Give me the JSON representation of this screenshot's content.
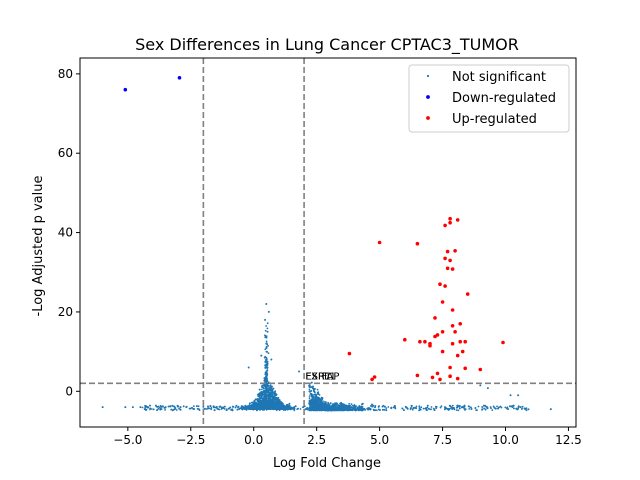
{
  "chart_data": {
    "type": "scatter",
    "title": "Sex Differences in Lung Cancer CPTAC3_TUMOR",
    "xlabel": "Log Fold Change",
    "ylabel": "-Log Adjusted p value",
    "xlim": [
      -6.9,
      12.8
    ],
    "ylim": [
      -9,
      84
    ],
    "x_ticks": [
      -5.0,
      -2.5,
      0.0,
      2.5,
      5.0,
      7.5,
      10.0,
      12.5
    ],
    "x_tick_labels": [
      "−5.0",
      "−2.5",
      "0.0",
      "2.5",
      "5.0",
      "7.5",
      "10.0",
      "12.5"
    ],
    "y_ticks": [
      0,
      20,
      40,
      60,
      80
    ],
    "y_tick_labels": [
      "0",
      "20",
      "40",
      "60",
      "80"
    ],
    "grid": false,
    "legend_position": "top-right",
    "threshold_lines": {
      "vertical": [
        -2.0,
        2.0
      ],
      "horizontal": [
        2.0
      ]
    },
    "annotations": [
      {
        "text": "FXR1",
        "x": 2.05,
        "y": 3.0
      },
      {
        "text": "ESPL1",
        "x": 2.05,
        "y": 3.0
      },
      {
        "text": "FAP",
        "x": 2.7,
        "y": 3.0
      }
    ],
    "series": [
      {
        "name": "Not significant",
        "color": "#1f77b4",
        "sample_points": [
          [
            -6.0,
            -4.0
          ],
          [
            -5.1,
            -4.0
          ],
          [
            -4.8,
            -4.0
          ],
          [
            -4.5,
            -4.0
          ],
          [
            -4.2,
            -4.0
          ],
          [
            -3.5,
            -4.0
          ],
          [
            -3.0,
            -3.8
          ],
          [
            0.5,
            22.0
          ],
          [
            0.6,
            20.0
          ],
          [
            0.45,
            18.0
          ],
          [
            0.55,
            15.0
          ],
          [
            0.5,
            12.0
          ],
          [
            0.3,
            9.0
          ],
          [
            0.7,
            8.0
          ],
          [
            -0.2,
            6.0
          ],
          [
            1.8,
            5.0
          ],
          [
            9.0,
            1.5
          ],
          [
            9.3,
            0.8
          ],
          [
            10.2,
            -1.0
          ],
          [
            10.5,
            -1.0
          ],
          [
            10.6,
            -4.0
          ],
          [
            10.1,
            -4.5
          ],
          [
            11.8,
            -4.5
          ]
        ]
      },
      {
        "name": "Down-regulated",
        "color": "#0000ff",
        "points": [
          [
            -5.1,
            76.0
          ],
          [
            -2.95,
            79.0
          ]
        ]
      },
      {
        "name": "Up-regulated",
        "color": "#ff0000",
        "points": [
          [
            5.0,
            37.5
          ],
          [
            6.5,
            37.2
          ],
          [
            7.8,
            43.5
          ],
          [
            8.1,
            43.2
          ],
          [
            7.6,
            41.8
          ],
          [
            7.8,
            42.5
          ],
          [
            7.7,
            35.2
          ],
          [
            8.0,
            35.4
          ],
          [
            7.6,
            33.5
          ],
          [
            7.8,
            33.0
          ],
          [
            7.7,
            31.0
          ],
          [
            7.9,
            30.8
          ],
          [
            7.4,
            27.0
          ],
          [
            7.6,
            26.5
          ],
          [
            8.5,
            24.5
          ],
          [
            7.5,
            22.5
          ],
          [
            7.9,
            20.5
          ],
          [
            8.2,
            17.0
          ],
          [
            7.9,
            16.5
          ],
          [
            8.0,
            15.0
          ],
          [
            7.2,
            18.5
          ],
          [
            7.5,
            15.0
          ],
          [
            7.3,
            14.2
          ],
          [
            7.2,
            13.8
          ],
          [
            7.0,
            12.0
          ],
          [
            6.8,
            12.5
          ],
          [
            8.2,
            12.5
          ],
          [
            8.4,
            12.5
          ],
          [
            7.9,
            12.0
          ],
          [
            8.3,
            10.0
          ],
          [
            6.0,
            13.0
          ],
          [
            6.6,
            12.5
          ],
          [
            7.0,
            11.5
          ],
          [
            7.5,
            10.0
          ],
          [
            8.1,
            9.0
          ],
          [
            9.9,
            12.3
          ],
          [
            3.8,
            9.5
          ],
          [
            7.8,
            6.0
          ],
          [
            8.4,
            5.8
          ],
          [
            9.0,
            5.5
          ],
          [
            6.5,
            4.0
          ],
          [
            4.8,
            3.6
          ],
          [
            4.7,
            3.0
          ],
          [
            7.3,
            4.5
          ],
          [
            7.8,
            3.8
          ],
          [
            8.1,
            3.2
          ],
          [
            7.4,
            3.0
          ],
          [
            7.1,
            3.5
          ]
        ]
      }
    ]
  }
}
